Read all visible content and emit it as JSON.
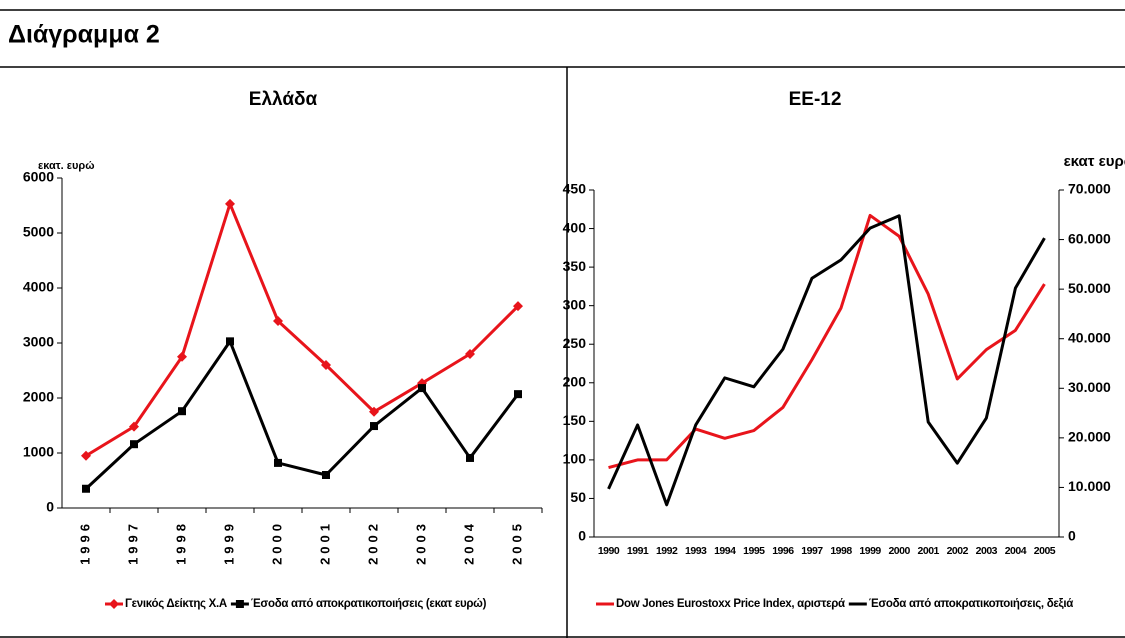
{
  "header": {
    "title": "Διάγραμμα 2"
  },
  "chart_data": [
    {
      "type": "line",
      "title": "Ελλάδα",
      "ylabel": "εκατ. ευρώ",
      "categories": [
        "1996",
        "1997",
        "1998",
        "1999",
        "2000",
        "2001",
        "2002",
        "2003",
        "2004",
        "2005"
      ],
      "series": [
        {
          "name": "Γενικός Δείκτης Χ.Α",
          "color": "#e8141b",
          "marker": "diamond",
          "values": [
            950,
            1480,
            2750,
            5530,
            3400,
            2600,
            1750,
            2270,
            2800,
            3670
          ]
        },
        {
          "name": "Έσοδα από αποκρατικοποιήσεις (εκατ ευρώ)",
          "color": "#000000",
          "marker": "square",
          "values": [
            350,
            1160,
            1760,
            3030,
            820,
            600,
            1490,
            2180,
            910,
            2070
          ]
        }
      ],
      "ylim": [
        0,
        6000
      ],
      "yticks": [
        0,
        1000,
        2000,
        3000,
        4000,
        5000,
        6000
      ],
      "grid": false,
      "legend": "bottom"
    },
    {
      "type": "line",
      "title": "ΕΕ-12",
      "y2label": "εκατ ευρώ",
      "categories": [
        "1990",
        "1991",
        "1992",
        "1993",
        "1994",
        "1995",
        "1996",
        "1997",
        "1998",
        "1999",
        "2000",
        "2001",
        "2002",
        "2003",
        "2004",
        "2005"
      ],
      "series": [
        {
          "name": "Dow Jones Eurostoxx Price Index, αριστερά",
          "color": "#e8141b",
          "values": [
            90,
            100,
            100,
            140,
            128,
            138,
            168,
            230,
            297,
            417,
            390,
            315,
            205,
            243,
            268,
            328
          ]
        },
        {
          "name": "Έσοδα από αποκρατικοποιήσεις, δεξιά",
          "color": "#000000",
          "axis": "y2",
          "values": [
            9700,
            22600,
            6500,
            22600,
            32100,
            30300,
            37900,
            52200,
            55900,
            62300,
            64800,
            23200,
            14900,
            24000,
            50200,
            60300
          ]
        }
      ],
      "ylim": [
        0,
        450
      ],
      "yticks": [
        0,
        50,
        100,
        150,
        200,
        250,
        300,
        350,
        400,
        450
      ],
      "y2lim": [
        0,
        70000
      ],
      "y2ticks": [
        0,
        {
          "value": 10000,
          "label": "10.000"
        },
        {
          "value": 20000,
          "label": "20.000"
        },
        {
          "value": 30000,
          "label": "30.000"
        },
        {
          "value": 40000,
          "label": "40.000"
        },
        {
          "value": 50000,
          "label": "50.000"
        },
        {
          "value": 60000,
          "label": "60.000"
        },
        {
          "value": 70000,
          "label": "70.000"
        }
      ],
      "grid": false,
      "legend": "bottom"
    }
  ]
}
